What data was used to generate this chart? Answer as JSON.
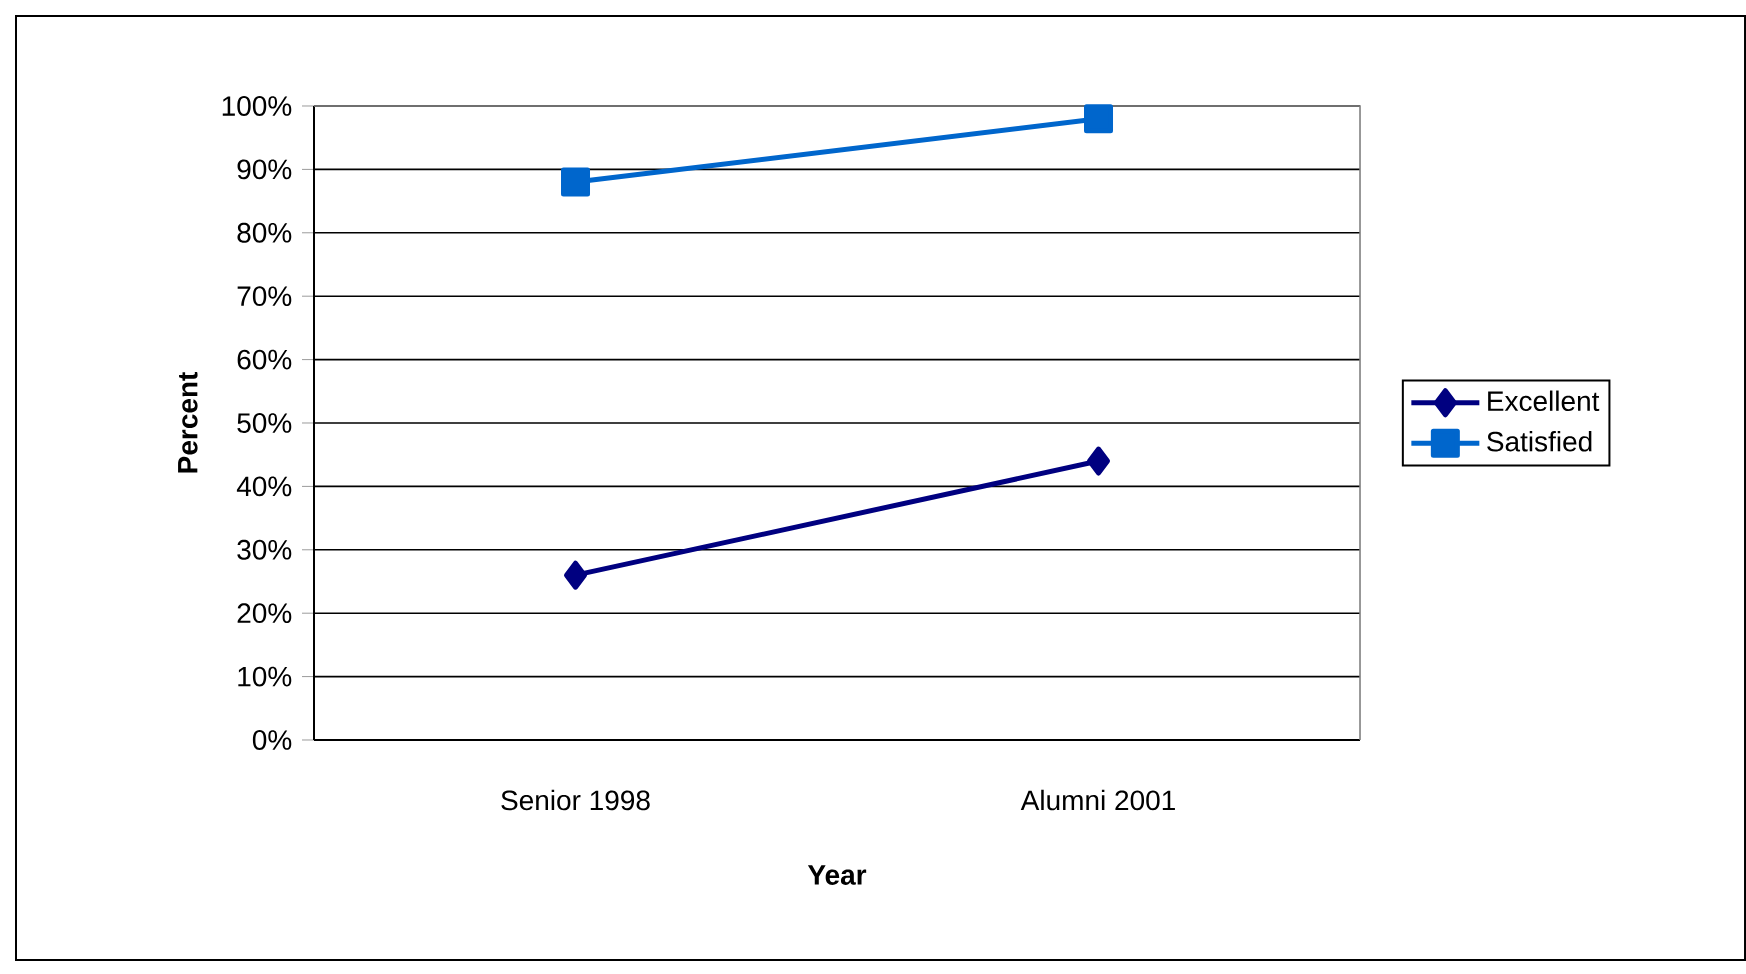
{
  "chart_data": {
    "type": "line",
    "xlabel": "Year",
    "ylabel": "Percent",
    "categories": [
      "Senior 1998",
      "Alumni 2001"
    ],
    "series": [
      {
        "name": "Excellent",
        "color": "#000080",
        "marker": "diamond",
        "values": [
          26,
          44
        ]
      },
      {
        "name": "Satisfied",
        "color": "#0066cc",
        "marker": "square",
        "values": [
          88,
          98
        ]
      }
    ],
    "ylim": [
      0,
      100
    ],
    "yticks": [
      {
        "value": 0,
        "label": "0%"
      },
      {
        "value": 10,
        "label": "10%"
      },
      {
        "value": 20,
        "label": "20%"
      },
      {
        "value": 30,
        "label": "30%"
      },
      {
        "value": 40,
        "label": "40%"
      },
      {
        "value": 50,
        "label": "50%"
      },
      {
        "value": 60,
        "label": "60%"
      },
      {
        "value": 70,
        "label": "70%"
      },
      {
        "value": 80,
        "label": "80%"
      },
      {
        "value": 90,
        "label": "90%"
      },
      {
        "value": 100,
        "label": "100%"
      }
    ],
    "grid": "y",
    "legend": "right",
    "line_style": "solid"
  }
}
